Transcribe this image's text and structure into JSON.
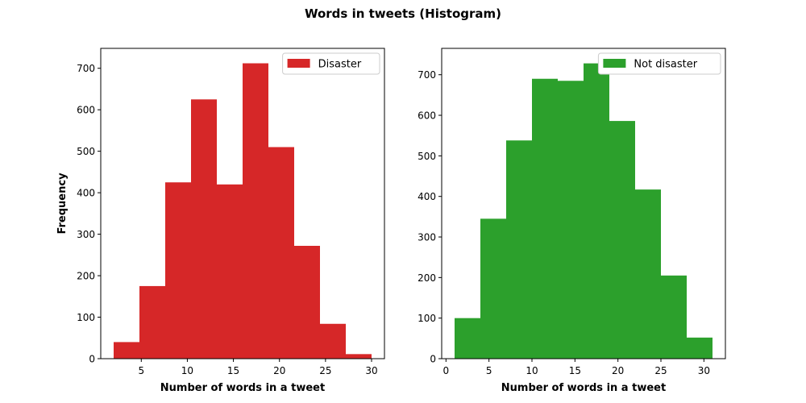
{
  "figure": {
    "suptitle": "Words in tweets (Histogram)"
  },
  "chart_data": [
    {
      "type": "bar",
      "subtype": "histogram",
      "series": [
        {
          "name": "Disaster",
          "color": "#d62728"
        }
      ],
      "bin_edges": [
        2,
        4.8,
        7.6,
        10.4,
        13.2,
        16.0,
        18.8,
        21.6,
        24.4,
        27.2,
        30
      ],
      "values": [
        40,
        175,
        425,
        625,
        420,
        712,
        510,
        272,
        84,
        11
      ],
      "xlabel": "Number of words in a tweet",
      "ylabel": "Frequency",
      "xlim": [
        0.6,
        31.4
      ],
      "ylim": [
        0,
        748
      ],
      "xticks": [
        5,
        10,
        15,
        20,
        25,
        30
      ],
      "yticks": [
        0,
        100,
        200,
        300,
        400,
        500,
        600,
        700
      ],
      "legend": "top-right",
      "grid": false
    },
    {
      "type": "bar",
      "subtype": "histogram",
      "series": [
        {
          "name": "Not disaster",
          "color": "#2ca02c"
        }
      ],
      "bin_edges": [
        1,
        4,
        7,
        10,
        13,
        16,
        19,
        22,
        25,
        28,
        31
      ],
      "values": [
        100,
        345,
        538,
        690,
        685,
        728,
        586,
        417,
        205,
        52
      ],
      "xlabel": "Number of words in a tweet",
      "ylabel": "",
      "xlim": [
        -0.5,
        32.5
      ],
      "ylim": [
        0,
        765
      ],
      "xticks": [
        0,
        5,
        10,
        15,
        20,
        25,
        30
      ],
      "yticks": [
        0,
        100,
        200,
        300,
        400,
        500,
        600,
        700
      ],
      "legend": "top-right",
      "grid": false
    }
  ]
}
